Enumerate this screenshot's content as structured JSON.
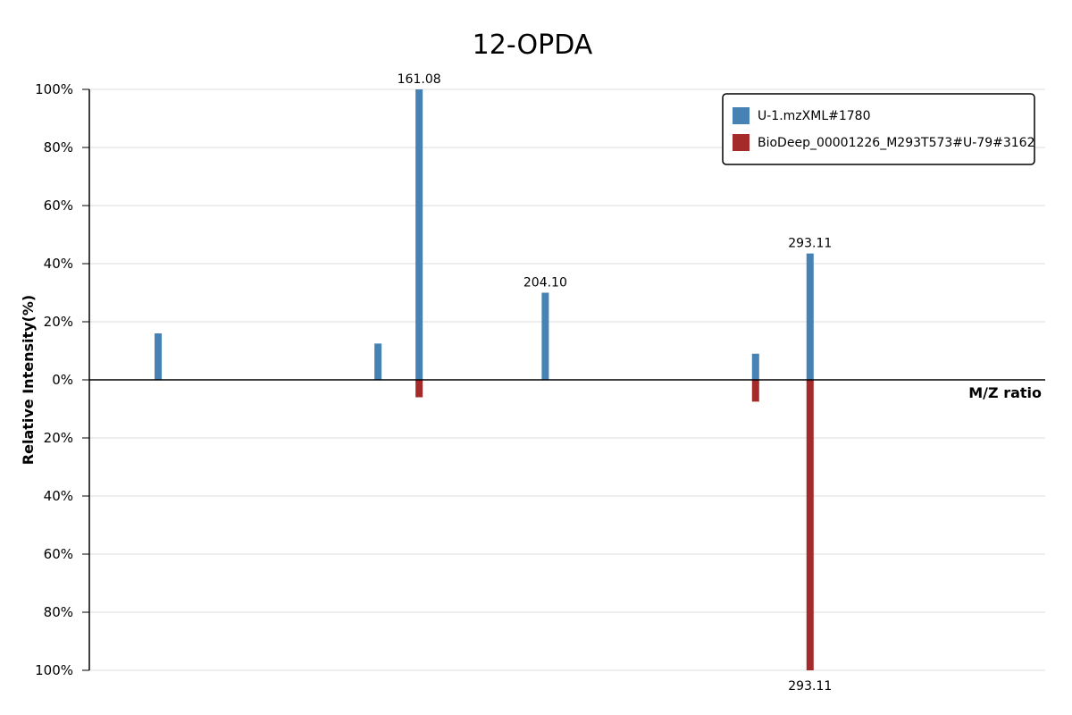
{
  "chart_data": {
    "type": "bar",
    "title": "12-OPDA",
    "xlabel": "M/Z ratio",
    "ylabel": "Relative Intensity(%)",
    "ylim": [
      -100,
      100
    ],
    "y_ticks": [
      {
        "value": 100,
        "label": "100%"
      },
      {
        "value": 80,
        "label": "80%"
      },
      {
        "value": 60,
        "label": "60%"
      },
      {
        "value": 40,
        "label": "40%"
      },
      {
        "value": 20,
        "label": "20%"
      },
      {
        "value": 0,
        "label": "0%"
      },
      {
        "value": -20,
        "label": "20%"
      },
      {
        "value": -40,
        "label": "40%"
      },
      {
        "value": -60,
        "label": "60%"
      },
      {
        "value": -80,
        "label": "80%"
      },
      {
        "value": -100,
        "label": "100%"
      }
    ],
    "legend_position": "top-right",
    "grid": true,
    "series": [
      {
        "name": "U-1.mzXML#1780",
        "color": "#4682b4",
        "direction": "up",
        "peaks": [
          {
            "pos": 0.072,
            "value": 16,
            "label": ""
          },
          {
            "pos": 0.302,
            "value": 12.5,
            "label": ""
          },
          {
            "pos": 0.345,
            "value": 100,
            "label": "161.08"
          },
          {
            "pos": 0.477,
            "value": 30,
            "label": "204.10"
          },
          {
            "pos": 0.697,
            "value": 9,
            "label": ""
          },
          {
            "pos": 0.754,
            "value": 43.5,
            "label": "293.11"
          }
        ]
      },
      {
        "name": "BioDeep_00001226_M293T573#U-79#3162",
        "color": "#a52a2a",
        "direction": "down",
        "peaks": [
          {
            "pos": 0.345,
            "value": 6,
            "label": ""
          },
          {
            "pos": 0.697,
            "value": 7.5,
            "label": ""
          },
          {
            "pos": 0.754,
            "value": 100,
            "label": "293.11"
          }
        ]
      }
    ]
  }
}
